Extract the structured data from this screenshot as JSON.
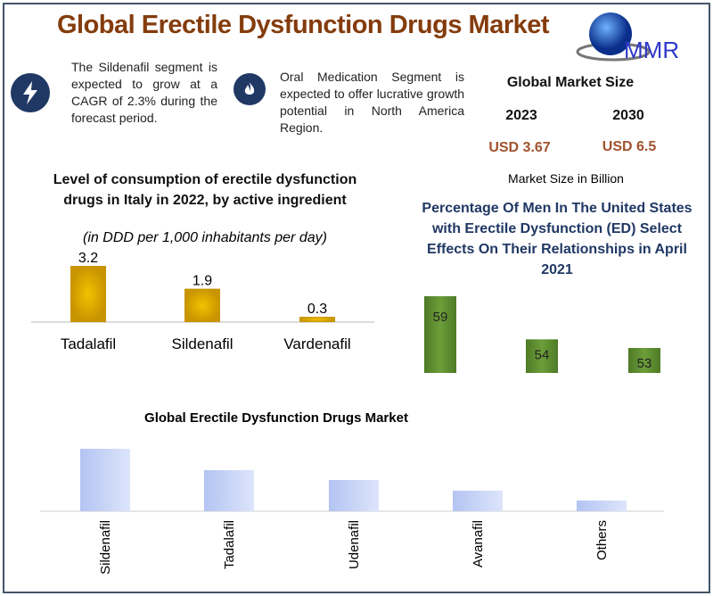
{
  "header": {
    "title": "Global Erectile Dysfunction Drugs Market",
    "logo_text": "MMR"
  },
  "highlights": [
    {
      "icon": "lightning-icon",
      "text": "The Sildenafil segment is expected to grow at a CAGR of 2.3% during the forecast period."
    },
    {
      "icon": "flame-icon",
      "text": "Oral Medication Segment is expected to offer lucrative growth potential in North America Region."
    }
  ],
  "market_size": {
    "heading": "Global Market Size",
    "years": [
      "2023",
      "2030"
    ],
    "values": [
      "USD 3.67",
      "USD 6.5"
    ],
    "unit_note": "Market Size in Billion"
  },
  "colors": {
    "title": "#843c0c",
    "gold": "#d4a000",
    "green": "#5a8a2e",
    "blue": "#c5d3f5",
    "icon_bg": "#1f3864"
  },
  "chart_data": [
    {
      "type": "bar",
      "title": "Level of consumption of erectile dysfunction drugs in Italy in 2022, by active ingredient",
      "subtitle": "(in DDD per 1,000 inhabitants per day)",
      "categories": [
        "Tadalafil",
        "Sildenafil",
        "Vardenafil"
      ],
      "values": [
        3.2,
        1.9,
        0.3
      ],
      "value_labels": [
        "3.2",
        "1.9",
        "0.3"
      ]
    },
    {
      "type": "bar",
      "title": "Percentage Of Men In The United States with Erectile Dysfunction (ED) Select Effects On Their Relationships in April 2021",
      "categories": [
        "",
        "",
        ""
      ],
      "values": [
        59,
        54,
        53
      ],
      "value_labels": [
        "59",
        "54",
        "53"
      ]
    },
    {
      "type": "bar",
      "title": "Global Erectile Dysfunction Drugs Market",
      "categories": [
        "Sildenafil",
        "Tadalafil",
        "Udenafil",
        "Avanafil",
        "Others"
      ],
      "values": [
        70,
        46,
        35,
        23,
        12
      ]
    }
  ]
}
